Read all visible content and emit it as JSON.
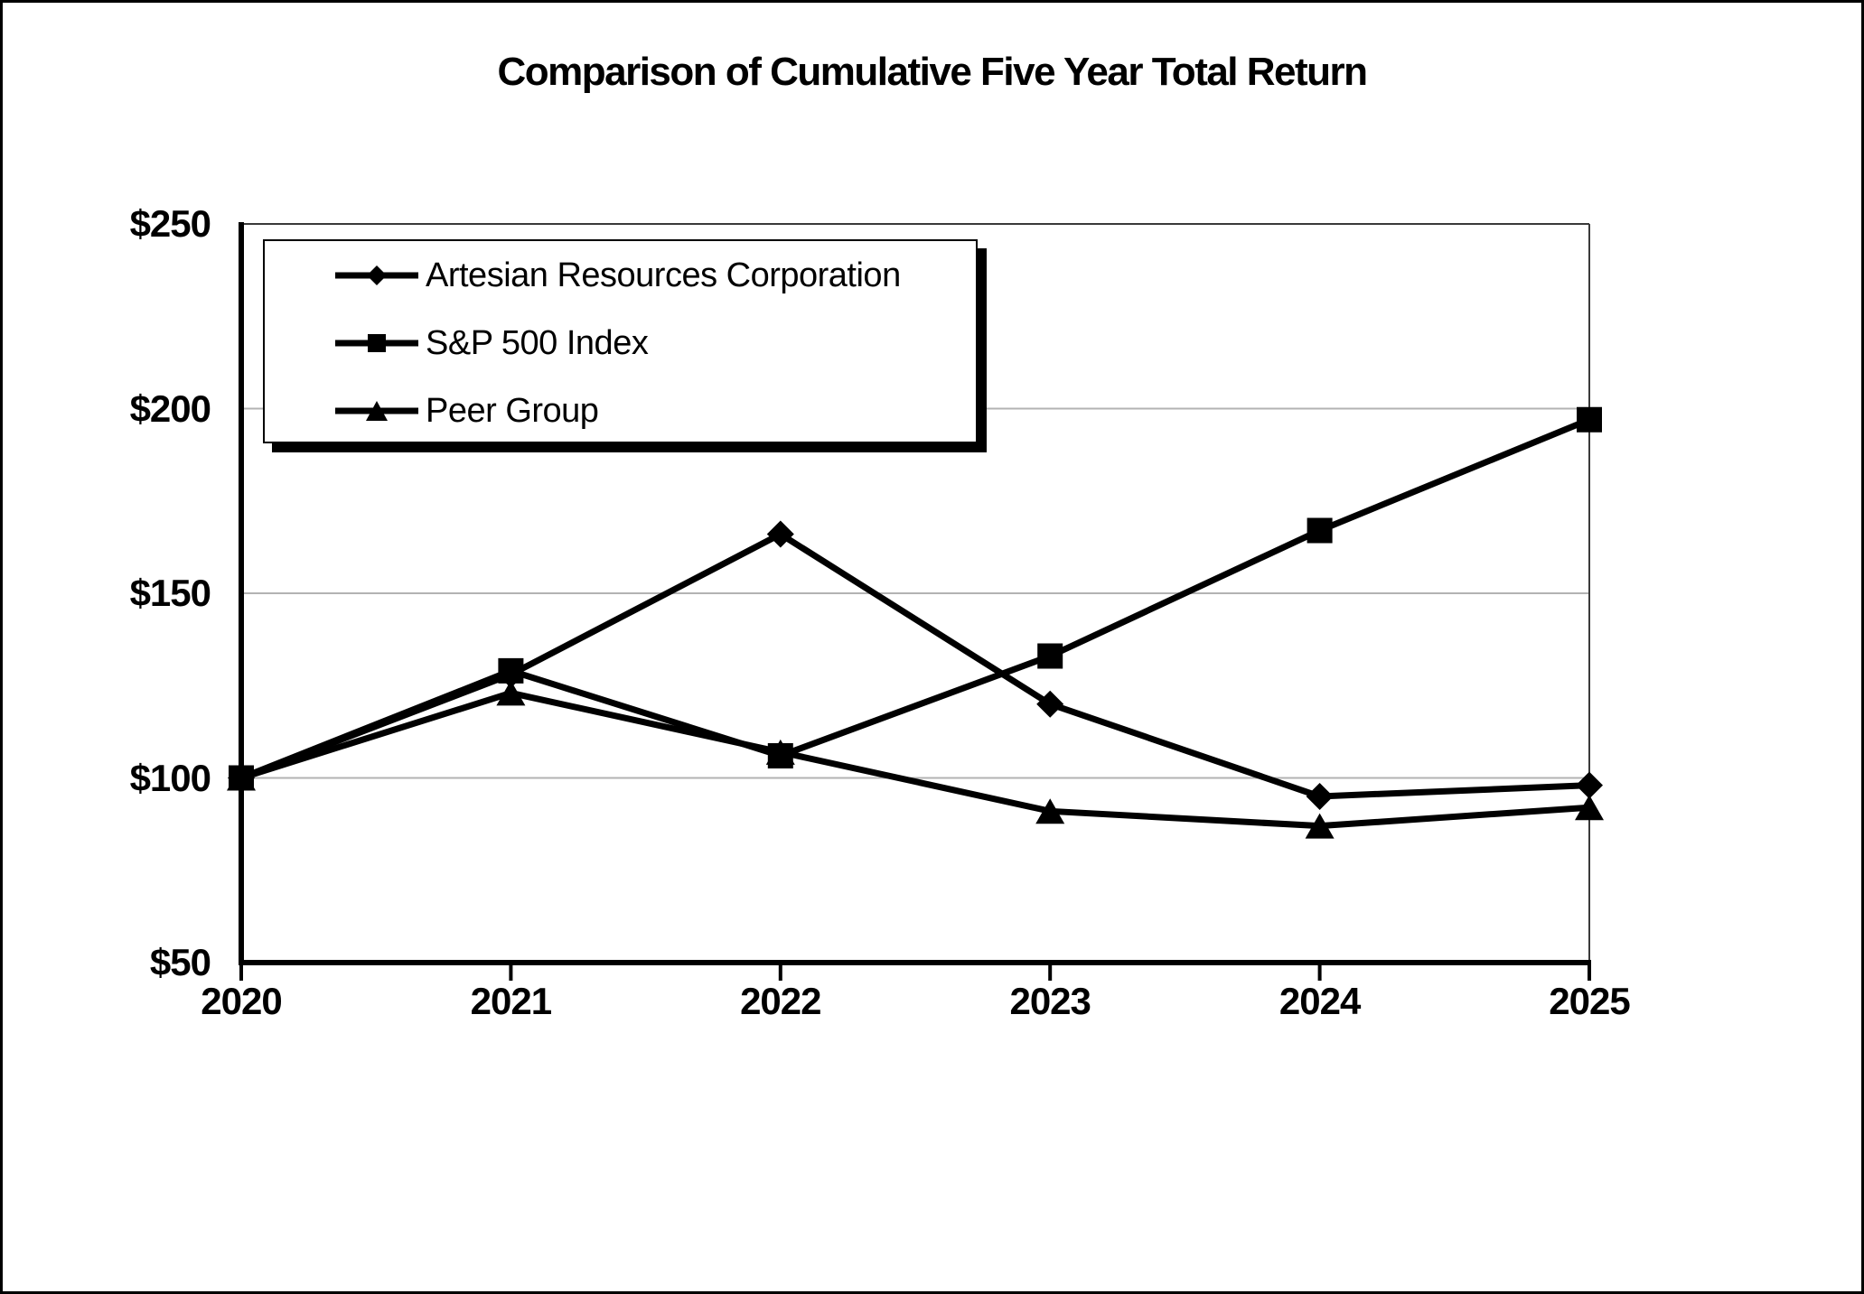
{
  "chart_data": {
    "type": "line",
    "title": "Comparison of Cumulative Five Year Total Return",
    "x_ticks": [
      "2020",
      "2021",
      "2022",
      "2023",
      "2024",
      "2025"
    ],
    "y_ticks": [
      "$250",
      "$200",
      "$150",
      "$100",
      "$50"
    ],
    "y_tick_values": [
      250,
      200,
      150,
      100,
      50
    ],
    "ylim": [
      50,
      250
    ],
    "grid": "horizontal",
    "legend_position": "top-left-inside",
    "series": [
      {
        "name": "Artesian Resources Corporation",
        "marker": "diamond",
        "values": [
          100,
          128,
          166,
          120,
          95,
          98
        ]
      },
      {
        "name": "S&P 500 Index",
        "marker": "square",
        "values": [
          100,
          129,
          106,
          133,
          167,
          197
        ]
      },
      {
        "name": "Peer Group",
        "marker": "triangle",
        "values": [
          100,
          123,
          107,
          91,
          87,
          92
        ]
      }
    ],
    "line_color": "#000000",
    "gridline_color": "#b3b3b3"
  }
}
